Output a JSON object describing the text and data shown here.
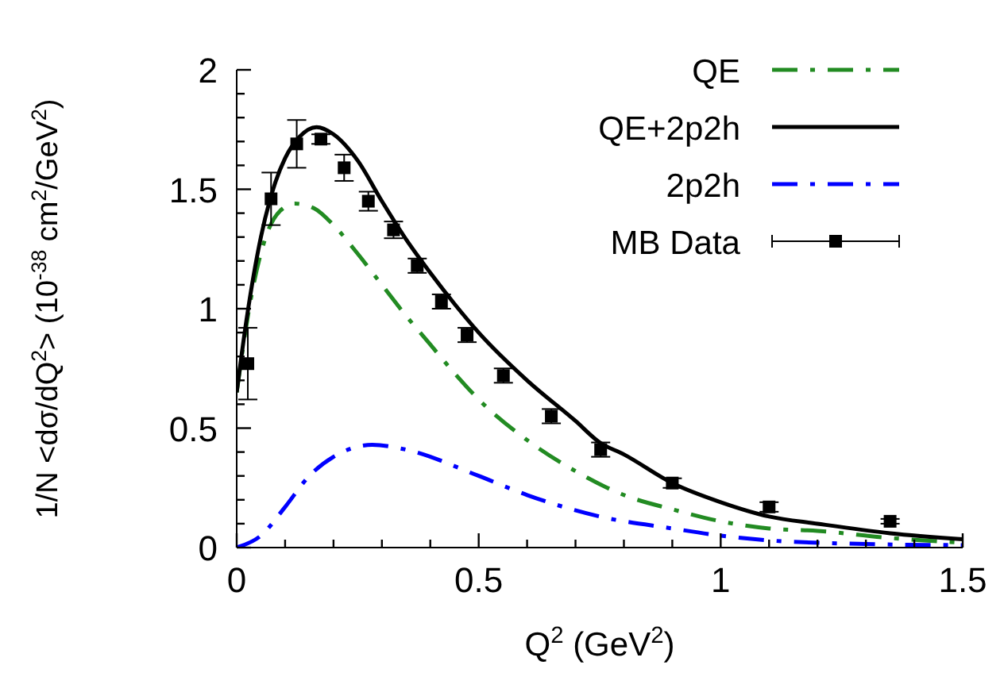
{
  "chart_data": {
    "type": "line",
    "xlabel": "Q$^{2}$ (GeV$^{2}$)",
    "ylabel": "1/N <dσ/dQ$^{2}$> (10$^{-38}$ cm$^{2}$/GeV$^{2}$)",
    "xlim": [
      0,
      1.5
    ],
    "xticks": [
      0,
      {
        "value": 0.1,
        "label": null
      },
      {
        "value": 0.2,
        "label": null
      },
      {
        "value": 0.3,
        "label": null
      },
      {
        "value": 0.4,
        "label": null
      },
      0.5,
      {
        "value": 0.6,
        "label": null
      },
      {
        "value": 0.7,
        "label": null
      },
      {
        "value": 0.8,
        "label": null
      },
      {
        "value": 0.9,
        "label": null
      },
      1,
      {
        "value": 1.1,
        "label": null
      },
      {
        "value": 1.2,
        "label": null
      },
      {
        "value": 1.3,
        "label": null
      },
      {
        "value": 1.4,
        "label": null
      },
      1.5
    ],
    "ylim": [
      0,
      2
    ],
    "yticks": [
      0,
      {
        "value": 0.1,
        "label": null
      },
      {
        "value": 0.2,
        "label": null
      },
      {
        "value": 0.3,
        "label": null
      },
      {
        "value": 0.4,
        "label": null
      },
      0.5,
      {
        "value": 0.6,
        "label": null
      },
      {
        "value": 0.7,
        "label": null
      },
      {
        "value": 0.8,
        "label": null
      },
      {
        "value": 0.9,
        "label": null
      },
      1,
      {
        "value": 1.1,
        "label": null
      },
      {
        "value": 1.2,
        "label": null
      },
      {
        "value": 1.3,
        "label": null
      },
      {
        "value": 1.4,
        "label": null
      },
      1.5,
      {
        "value": 1.6,
        "label": null
      },
      {
        "value": 1.7,
        "label": null
      },
      {
        "value": 1.8,
        "label": null
      },
      {
        "value": 1.9,
        "label": null
      },
      2
    ],
    "grid": false,
    "legend": "top right",
    "series": [
      {
        "name": "QE",
        "type": "line",
        "color": "#228b22",
        "line_style": "dashed",
        "marker": "none",
        "x": [
          0,
          0.03,
          0.06,
          0.09,
          0.12,
          0.16,
          0.2,
          0.25,
          0.3,
          0.35,
          0.4,
          0.45,
          0.5,
          0.6,
          0.7,
          0.8,
          0.9,
          1.0,
          1.1,
          1.2,
          1.35,
          1.5
        ],
        "values": [
          0.65,
          1.05,
          1.3,
          1.41,
          1.44,
          1.42,
          1.35,
          1.23,
          1.1,
          0.97,
          0.85,
          0.73,
          0.62,
          0.45,
          0.32,
          0.22,
          0.16,
          0.11,
          0.08,
          0.07,
          0.04,
          0.02
        ]
      },
      {
        "name": "QE+2p2h",
        "type": "line",
        "color": "#000000",
        "line_style": "solid",
        "marker": "none",
        "x": [
          0,
          0.02,
          0.05,
          0.08,
          0.1,
          0.13,
          0.165,
          0.2,
          0.25,
          0.3,
          0.35,
          0.4,
          0.45,
          0.5,
          0.6,
          0.7,
          0.75,
          0.8,
          0.9,
          1.0,
          1.1,
          1.2,
          1.35,
          1.5
        ],
        "values": [
          0.65,
          0.95,
          1.3,
          1.53,
          1.63,
          1.72,
          1.76,
          1.73,
          1.62,
          1.45,
          1.29,
          1.15,
          1.02,
          0.9,
          0.7,
          0.53,
          0.44,
          0.39,
          0.27,
          0.19,
          0.13,
          0.1,
          0.06,
          0.035
        ]
      },
      {
        "name": "2p2h",
        "type": "line",
        "color": "#0000ff",
        "line_style": "dashed",
        "marker": "none",
        "x": [
          0,
          0.05,
          0.1,
          0.15,
          0.2,
          0.28,
          0.35,
          0.5,
          0.6,
          0.75,
          0.9,
          1.0,
          1.1,
          1.3,
          1.5
        ],
        "values": [
          0,
          0.05,
          0.17,
          0.3,
          0.38,
          0.43,
          0.41,
          0.3,
          0.22,
          0.13,
          0.08,
          0.05,
          0.03,
          0.015,
          0.01
        ]
      },
      {
        "name": "MB Data",
        "type": "scatter",
        "color": "#000000",
        "marker": "square",
        "x": [
          0.023,
          0.071,
          0.124,
          0.174,
          0.222,
          0.272,
          0.324,
          0.373,
          0.423,
          0.476,
          0.551,
          0.65,
          0.752,
          0.9,
          1.1,
          1.35
        ],
        "values": [
          0.77,
          1.46,
          1.69,
          1.71,
          1.59,
          1.45,
          1.33,
          1.18,
          1.03,
          0.89,
          0.72,
          0.55,
          0.41,
          0.27,
          0.17,
          0.11
        ],
        "errors": [
          0.15,
          0.11,
          0.1,
          0.02,
          0.055,
          0.04,
          0.035,
          0.03,
          0.03,
          0.03,
          0.03,
          0.03,
          0.03,
          0.02,
          0.02,
          0.01
        ]
      }
    ]
  }
}
